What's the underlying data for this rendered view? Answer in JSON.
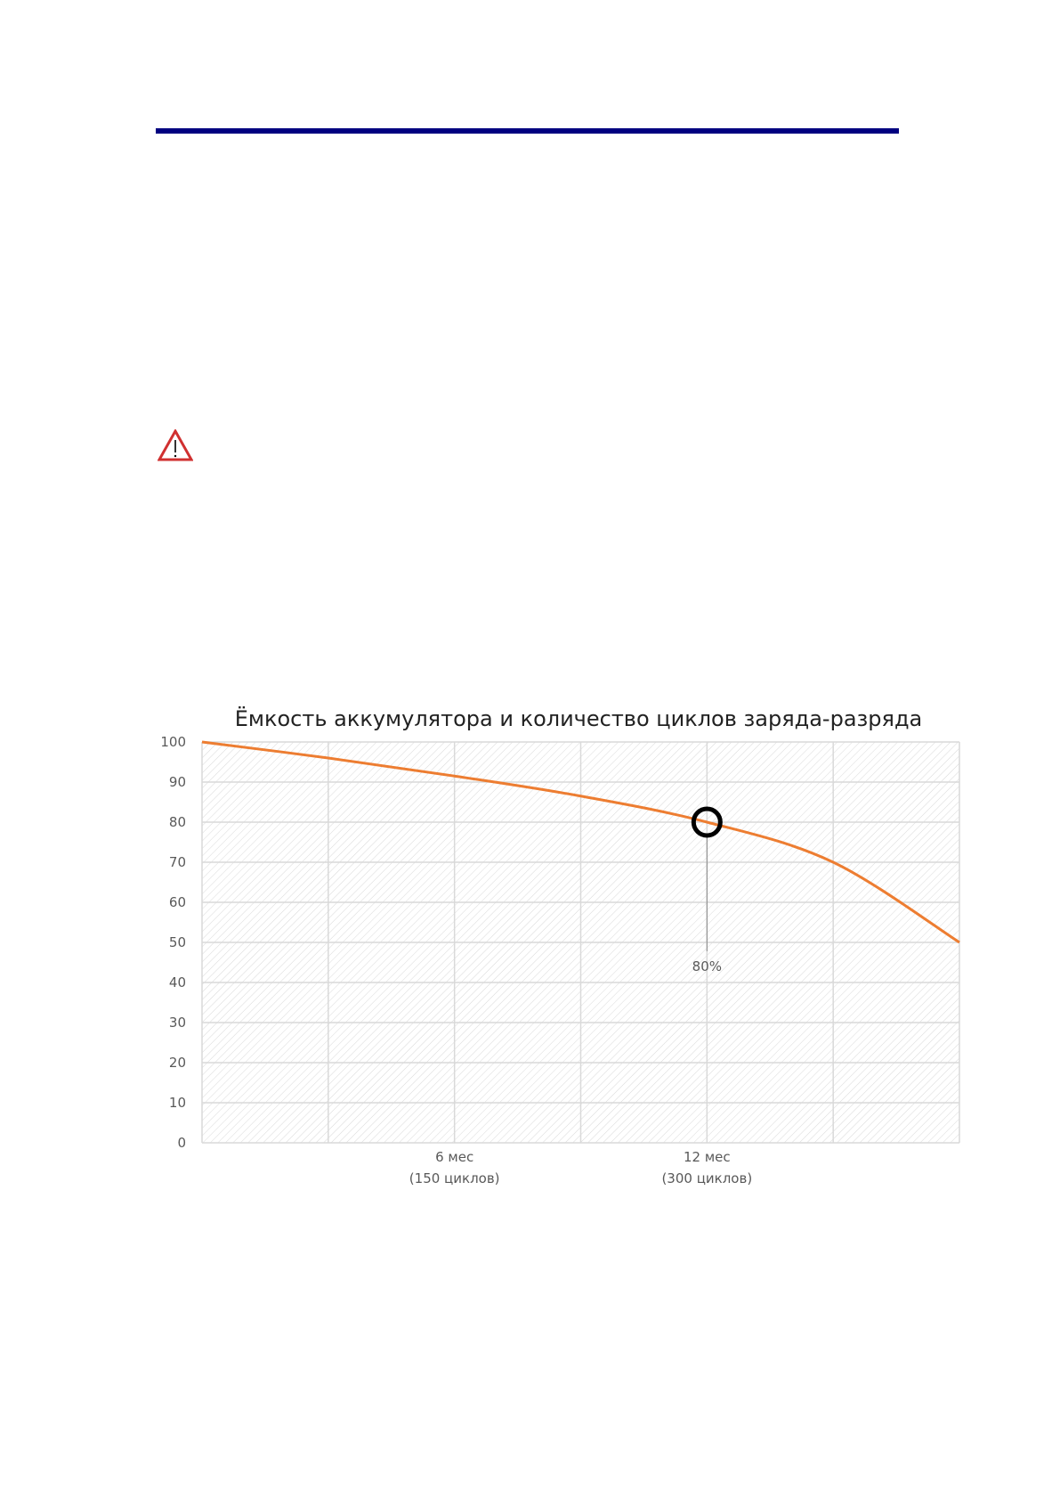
{
  "chart_data": {
    "type": "line",
    "title": "Ёмкость аккумулятора и количество циклов заряда-разряда",
    "xlabel": "",
    "ylabel": "",
    "x": [
      0,
      75,
      150,
      225,
      300,
      375,
      450
    ],
    "xlim": [
      0,
      450
    ],
    "x_ticks": [
      {
        "x": 150,
        "line1": "6 мес",
        "line2": "(150 циклов)"
      },
      {
        "x": 300,
        "line1": "12 мес",
        "line2": "(300 циклов)"
      }
    ],
    "series": [
      {
        "values": [
          100,
          96,
          91.5,
          86.5,
          80,
          70,
          50
        ],
        "color": "#ED7D31"
      }
    ],
    "ylim": [
      0,
      100
    ],
    "y_ticks": [
      0,
      10,
      20,
      30,
      40,
      50,
      60,
      70,
      80,
      90,
      100
    ],
    "grid": true,
    "pattern_fill": "diagonal hatch",
    "annotation": {
      "x": 300,
      "y": 80,
      "label": "80%",
      "marker": "circle"
    }
  },
  "colors": {
    "header_bar": "#000080",
    "warning": "#D03030"
  },
  "icons": {
    "warning": "warning-triangle-icon"
  }
}
